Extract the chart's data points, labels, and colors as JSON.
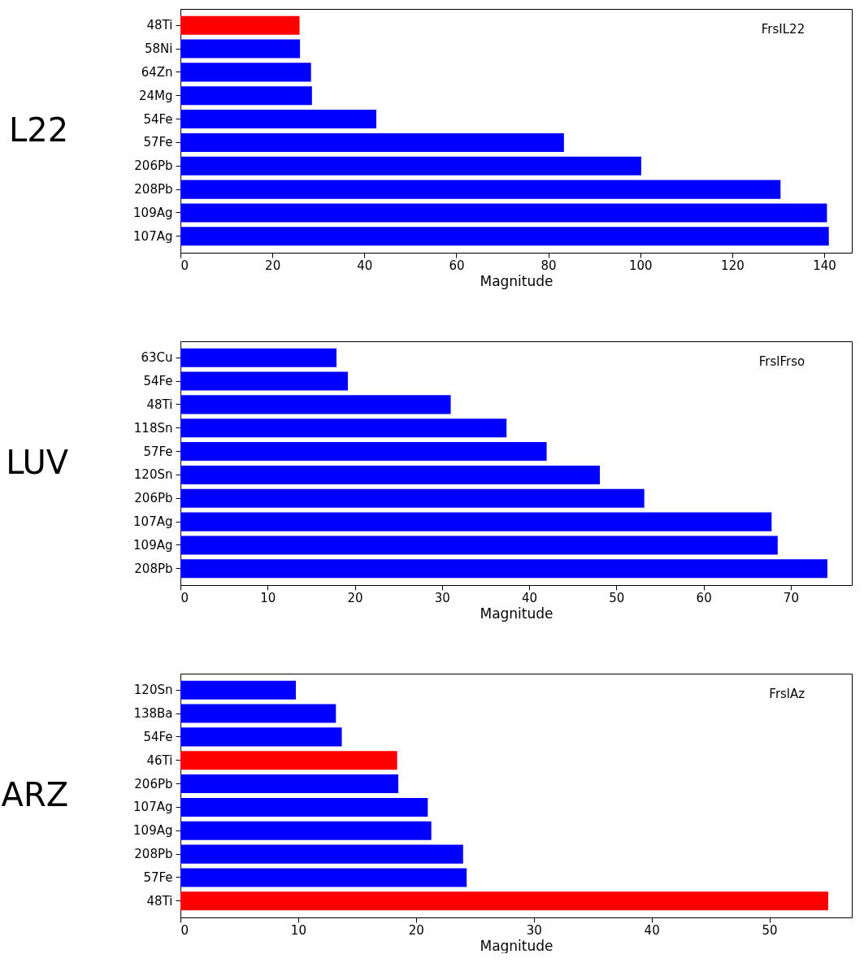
{
  "chart_data": [
    {
      "type": "bar",
      "orientation": "horizontal",
      "ylabel": "L22",
      "xlabel": "Magnitude",
      "annotations": [
        "FrsIL22"
      ],
      "categories": [
        "48Ti",
        "58Ni",
        "64Zn",
        "24Mg",
        "54Fe",
        "57Fe",
        "206Pb",
        "208Pb",
        "109Ag",
        "107Ag"
      ],
      "values": [
        25.9,
        26.0,
        28.4,
        28.6,
        42.6,
        83.4,
        100.2,
        130.5,
        140.6,
        141.0
      ],
      "colors": [
        "#ff0000",
        "#0000ff",
        "#0000ff",
        "#0000ff",
        "#0000ff",
        "#0000ff",
        "#0000ff",
        "#0000ff",
        "#0000ff",
        "#0000ff"
      ],
      "xlim": [
        0,
        146
      ],
      "xticks": [
        0,
        20,
        40,
        60,
        80,
        100,
        120,
        140
      ],
      "grid": false
    },
    {
      "type": "bar",
      "orientation": "horizontal",
      "ylabel": "LUV",
      "xlabel": "Magnitude",
      "annotations": [
        "FrslFrso"
      ],
      "categories": [
        "63Cu",
        "54Fe",
        "48Ti",
        "118Sn",
        "57Fe",
        "120Sn",
        "206Pb",
        "107Ag",
        "109Ag",
        "208Pb"
      ],
      "values": [
        17.9,
        19.2,
        31.0,
        37.4,
        42.0,
        48.1,
        53.2,
        67.8,
        68.5,
        74.2
      ],
      "colors": [
        "#0000ff",
        "#0000ff",
        "#0000ff",
        "#0000ff",
        "#0000ff",
        "#0000ff",
        "#0000ff",
        "#0000ff",
        "#0000ff",
        "#0000ff"
      ],
      "xlim": [
        0,
        77
      ],
      "xticks": [
        0,
        10,
        20,
        30,
        40,
        50,
        60,
        70
      ],
      "grid": false
    },
    {
      "type": "bar",
      "orientation": "horizontal",
      "ylabel": "ARZ",
      "xlabel": "Magnitude",
      "annotations": [
        "FrslAz"
      ],
      "categories": [
        "120Sn",
        "138Ba",
        "54Fe",
        "46Ti",
        "206Pb",
        "107Ag",
        "109Ag",
        "208Pb",
        "57Fe",
        "48Ti"
      ],
      "values": [
        9.8,
        13.2,
        13.7,
        18.4,
        18.5,
        21.0,
        21.3,
        24.0,
        24.3,
        55.0
      ],
      "colors": [
        "#0000ff",
        "#0000ff",
        "#0000ff",
        "#ff0000",
        "#0000ff",
        "#0000ff",
        "#0000ff",
        "#0000ff",
        "#0000ff",
        "#ff0000"
      ],
      "xlim": [
        0,
        57
      ],
      "xticks": [
        0,
        10,
        20,
        30,
        40,
        50
      ],
      "grid": false
    }
  ]
}
